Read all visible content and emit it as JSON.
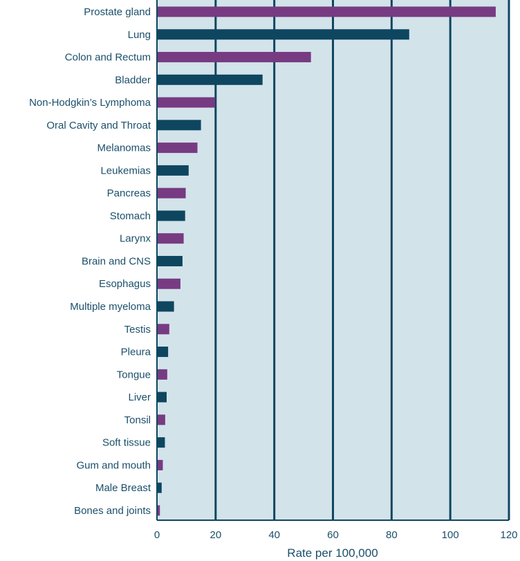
{
  "chart_data": {
    "type": "bar",
    "orientation": "horizontal",
    "title": "",
    "xlabel": "Rate per 100,000",
    "ylabel": "",
    "xlim": [
      0,
      120
    ],
    "xticks": [
      0,
      20,
      40,
      60,
      80,
      100,
      120
    ],
    "grid": "vertical",
    "categories": [
      "Prostate gland",
      "Lung",
      "Colon and Rectum",
      "Bladder",
      "Non-Hodgkin’s Lymphoma",
      "Oral Cavity and Throat",
      "Melanomas",
      "Leukemias",
      "Pancreas",
      "Stomach",
      "Larynx",
      "Brain and CNS",
      "Esophagus",
      "Multiple myeloma",
      "Testis",
      "Pleura",
      "Tongue",
      "Liver",
      "Tonsil",
      "Soft tissue",
      "Gum and mouth",
      "Male Breast",
      "Bones and joints"
    ],
    "values": [
      115.5,
      86,
      52.5,
      36,
      19.8,
      15,
      13.8,
      10.8,
      9.8,
      9.6,
      9.1,
      8.7,
      8.0,
      5.8,
      4.2,
      3.8,
      3.5,
      3.3,
      2.8,
      2.7,
      2.0,
      1.6,
      1.0
    ],
    "colors": {
      "bar_primary": "#773b82",
      "bar_secondary": "#0e4660",
      "plot_background": "#d3e3ea",
      "gridline": "#0e4660",
      "text": "#1b4f6b"
    }
  }
}
